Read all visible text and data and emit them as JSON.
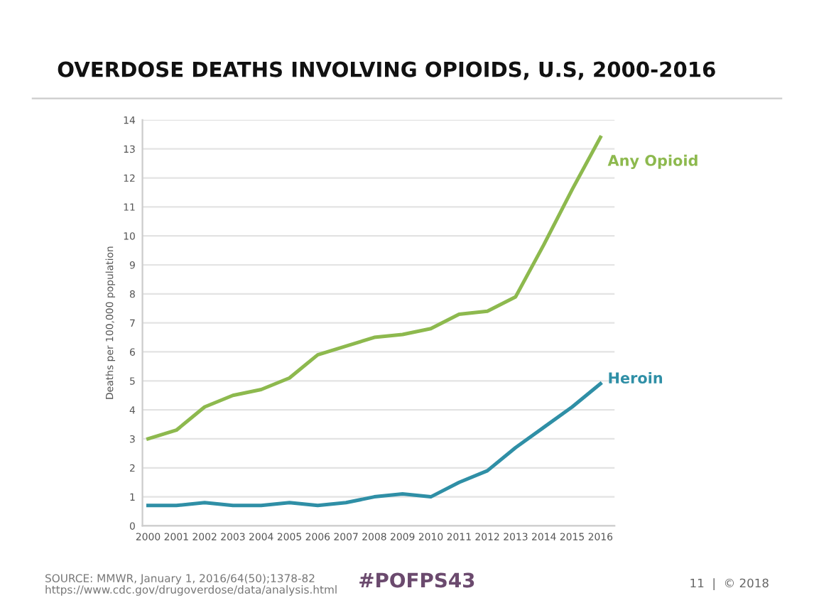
{
  "chart_data": {
    "type": "line",
    "title": "OVERDOSE DEATHS INVOLVING OPIOIDS, U.S, 2000-2016",
    "ylabel": "Deaths per 100,000 population",
    "x": [
      2000,
      2001,
      2002,
      2003,
      2004,
      2005,
      2006,
      2007,
      2008,
      2009,
      2010,
      2011,
      2012,
      2013,
      2014,
      2015,
      2016
    ],
    "series": [
      {
        "name": "Any Opioid",
        "color": "#8db94e",
        "values": [
          3.0,
          3.3,
          4.1,
          4.5,
          4.7,
          5.1,
          5.9,
          6.2,
          6.5,
          6.6,
          6.8,
          7.3,
          7.4,
          7.9,
          9.7,
          11.6,
          13.4
        ]
      },
      {
        "name": "Heroin",
        "color": "#2f8fa6",
        "values": [
          0.7,
          0.7,
          0.8,
          0.7,
          0.7,
          0.8,
          0.7,
          0.8,
          1.0,
          1.1,
          1.0,
          1.5,
          1.9,
          2.7,
          3.4,
          4.1,
          4.9
        ]
      }
    ],
    "xlim": [
      1999.8,
      2016.5
    ],
    "xticks": [
      2000,
      2001,
      2002,
      2003,
      2004,
      2005,
      2006,
      2007,
      2008,
      2009,
      2010,
      2011,
      2012,
      2013,
      2014,
      2015,
      2016
    ],
    "ylim": [
      0,
      14
    ],
    "yticks": [
      0,
      1,
      2,
      3,
      4,
      5,
      6,
      7,
      8,
      9,
      10,
      11,
      12,
      13,
      14
    ],
    "grid": "y",
    "legend": false,
    "marker": "none",
    "line_style": "solid",
    "annotations": [
      "SOURCE: MMWR, January 1, 2016/64(50);1378-82\nhttps://www.cdc.gov/drugoverdose/data/analysis.html",
      "#POFPS43",
      "11  |  © 2018"
    ]
  }
}
